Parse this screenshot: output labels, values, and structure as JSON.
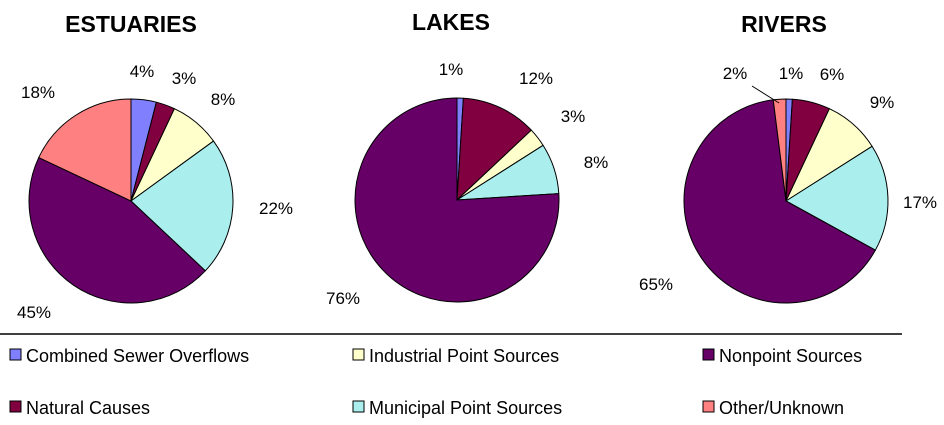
{
  "chart_data": {
    "type": "pie",
    "legend_placement": "bottom",
    "legend": [
      {
        "name": "Combined Sewer Overflows",
        "color": "#8080ff"
      },
      {
        "name": "Industrial Point Sources",
        "color": "#ffffcc"
      },
      {
        "name": "Nonpoint Sources",
        "color": "#660066"
      },
      {
        "name": "Natural Causes",
        "color": "#800040"
      },
      {
        "name": "Municipal Point Sources",
        "color": "#aaeeee"
      },
      {
        "name": "Other/Unknown",
        "color": "#ff8080"
      }
    ],
    "charts": [
      {
        "title": "ESTUARIES",
        "slices": [
          {
            "category": "Combined Sewer Overflows",
            "value": 4,
            "label": "4%"
          },
          {
            "category": "Natural Causes",
            "value": 3,
            "label": "3%"
          },
          {
            "category": "Industrial Point Sources",
            "value": 8,
            "label": "8%"
          },
          {
            "category": "Municipal Point Sources",
            "value": 22,
            "label": "22%"
          },
          {
            "category": "Nonpoint Sources",
            "value": 45,
            "label": "45%"
          },
          {
            "category": "Other/Unknown",
            "value": 18,
            "label": "18%"
          }
        ]
      },
      {
        "title": "LAKES",
        "slices": [
          {
            "category": "Combined Sewer Overflows",
            "value": 1,
            "label": "1%"
          },
          {
            "category": "Natural Causes",
            "value": 12,
            "label": "12%"
          },
          {
            "category": "Industrial Point Sources",
            "value": 3,
            "label": "3%"
          },
          {
            "category": "Municipal Point Sources",
            "value": 8,
            "label": "8%"
          },
          {
            "category": "Nonpoint Sources",
            "value": 76,
            "label": "76%"
          }
        ]
      },
      {
        "title": "RIVERS",
        "slices": [
          {
            "category": "Combined Sewer Overflows",
            "value": 1,
            "label": "1%"
          },
          {
            "category": "Natural Causes",
            "value": 6,
            "label": "6%"
          },
          {
            "category": "Industrial Point Sources",
            "value": 9,
            "label": "9%"
          },
          {
            "category": "Municipal Point Sources",
            "value": 17,
            "label": "17%"
          },
          {
            "category": "Nonpoint Sources",
            "value": 65,
            "label": "65%"
          },
          {
            "category": "Other/Unknown",
            "value": 2,
            "label": "2%"
          }
        ]
      }
    ]
  }
}
